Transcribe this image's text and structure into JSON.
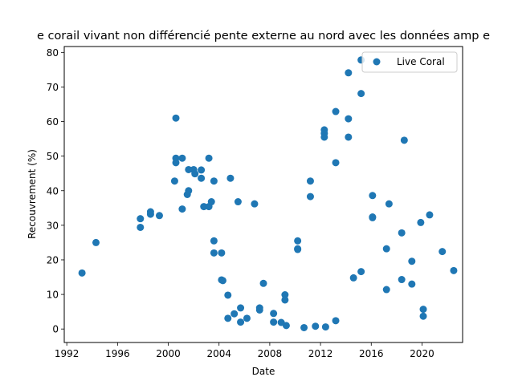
{
  "chart_data": {
    "type": "scatter",
    "title": "e corail vivant non différencié pente externe au nord avec les données amp e",
    "xlabel": "Date",
    "ylabel": "Recouvrement (%)",
    "xlim": [
      1991.8,
      2023.2
    ],
    "ylim": [
      -3.9,
      81.7
    ],
    "xticks": [
      1992,
      1996,
      2000,
      2004,
      2008,
      2012,
      2016,
      2020
    ],
    "yticks": [
      0,
      10,
      20,
      30,
      40,
      50,
      60,
      70,
      80
    ],
    "grid": false,
    "legend_position": "top-right",
    "series": [
      {
        "name": "Live Coral",
        "color": "#1f77b4",
        "points": [
          [
            1993.2,
            16.2
          ],
          [
            1994.3,
            25.0
          ],
          [
            1997.8,
            31.9
          ],
          [
            1997.8,
            29.4
          ],
          [
            1998.6,
            33.9
          ],
          [
            1998.6,
            33.2
          ],
          [
            1999.3,
            32.8
          ],
          [
            2000.5,
            42.8
          ],
          [
            2000.6,
            61.0
          ],
          [
            2000.6,
            49.4
          ],
          [
            2000.6,
            48.1
          ],
          [
            2001.1,
            49.4
          ],
          [
            2001.1,
            34.7
          ],
          [
            2001.5,
            38.9
          ],
          [
            2001.6,
            46.1
          ],
          [
            2001.6,
            40.0
          ],
          [
            2002.0,
            46.1
          ],
          [
            2002.1,
            44.9
          ],
          [
            2002.6,
            46.0
          ],
          [
            2002.6,
            43.6
          ],
          [
            2002.8,
            35.4
          ],
          [
            2003.2,
            49.4
          ],
          [
            2003.2,
            35.4
          ],
          [
            2003.4,
            36.8
          ],
          [
            2003.6,
            42.8
          ],
          [
            2003.6,
            25.5
          ],
          [
            2003.6,
            22.0
          ],
          [
            2004.2,
            22.0
          ],
          [
            2004.2,
            14.2
          ],
          [
            2004.3,
            14.0
          ],
          [
            2004.7,
            9.8
          ],
          [
            2004.7,
            3.1
          ],
          [
            2004.9,
            43.6
          ],
          [
            2005.2,
            4.4
          ],
          [
            2005.5,
            36.8
          ],
          [
            2005.7,
            6.1
          ],
          [
            2005.7,
            2.0
          ],
          [
            2006.2,
            3.1
          ],
          [
            2006.8,
            36.2
          ],
          [
            2007.2,
            6.1
          ],
          [
            2007.2,
            5.5
          ],
          [
            2007.5,
            13.2
          ],
          [
            2008.3,
            4.5
          ],
          [
            2008.3,
            2.0
          ],
          [
            2008.9,
            1.9
          ],
          [
            2009.2,
            9.9
          ],
          [
            2009.2,
            8.4
          ],
          [
            2009.3,
            1.0
          ],
          [
            2010.2,
            25.5
          ],
          [
            2010.2,
            23.2
          ],
          [
            2010.2,
            23.0
          ],
          [
            2010.7,
            0.4
          ],
          [
            2011.2,
            42.8
          ],
          [
            2011.2,
            38.3
          ],
          [
            2011.6,
            0.8
          ],
          [
            2012.3,
            57.6
          ],
          [
            2012.3,
            56.6
          ],
          [
            2012.3,
            55.5
          ],
          [
            2012.4,
            0.6
          ],
          [
            2013.2,
            62.9
          ],
          [
            2013.2,
            48.1
          ],
          [
            2013.2,
            2.4
          ],
          [
            2014.2,
            74.1
          ],
          [
            2014.2,
            60.8
          ],
          [
            2014.2,
            55.5
          ],
          [
            2014.6,
            14.8
          ],
          [
            2015.2,
            77.8
          ],
          [
            2015.2,
            68.1
          ],
          [
            2015.2,
            16.6
          ],
          [
            2016.1,
            38.6
          ],
          [
            2016.1,
            32.4
          ],
          [
            2016.1,
            32.2
          ],
          [
            2017.2,
            23.2
          ],
          [
            2017.2,
            11.4
          ],
          [
            2017.4,
            36.2
          ],
          [
            2018.4,
            27.8
          ],
          [
            2018.4,
            14.3
          ],
          [
            2018.6,
            54.6
          ],
          [
            2019.2,
            19.6
          ],
          [
            2019.2,
            13.0
          ],
          [
            2019.9,
            30.8
          ],
          [
            2020.1,
            5.7
          ],
          [
            2020.1,
            3.7
          ],
          [
            2020.6,
            33.0
          ],
          [
            2021.6,
            22.4
          ],
          [
            2022.5,
            16.9
          ]
        ]
      }
    ]
  }
}
